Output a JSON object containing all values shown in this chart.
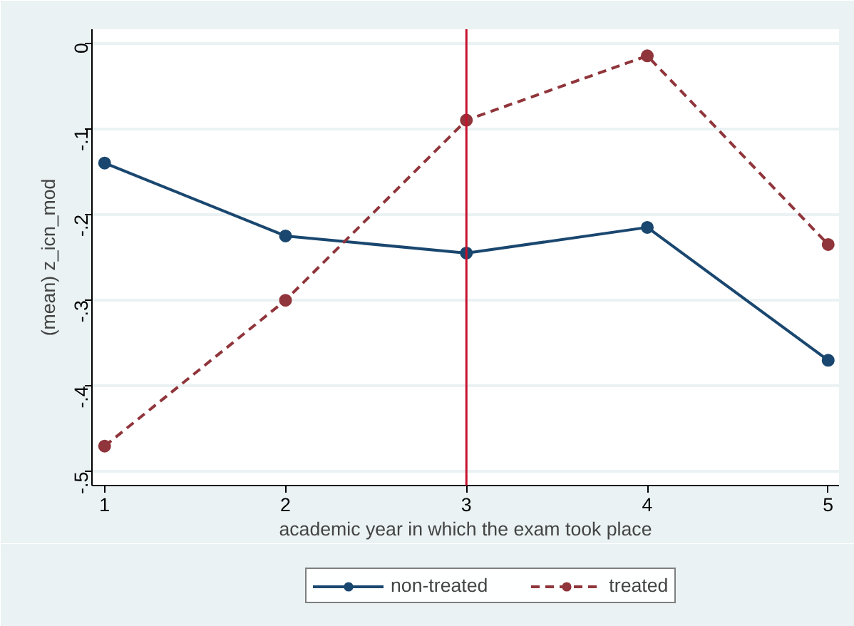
{
  "chart_data": {
    "type": "line",
    "xlabel": "academic year in which the exam took place",
    "ylabel": "(mean) z_icn_mod",
    "x": [
      1,
      2,
      3,
      4,
      5
    ],
    "series": [
      {
        "name": "non-treated",
        "color": "#1a476f",
        "values": [
          -0.14,
          -0.225,
          -0.245,
          -0.215,
          -0.37
        ],
        "line_style": "solid"
      },
      {
        "name": "treated",
        "color": "#90353b",
        "values": [
          -0.47,
          -0.3,
          -0.09,
          -0.015,
          -0.235
        ],
        "line_style": "dashed"
      }
    ],
    "xlim": [
      0.93,
      5.06
    ],
    "ylim": [
      -0.516,
      0.016
    ],
    "xticks": [
      1,
      2,
      3,
      4,
      5
    ],
    "yticks": [
      {
        "value": 0,
        "label": "0"
      },
      {
        "value": -0.1,
        "label": "-.1"
      },
      {
        "value": -0.2,
        "label": "-.2"
      },
      {
        "value": -0.3,
        "label": "-.3"
      },
      {
        "value": -0.4,
        "label": "-.4"
      },
      {
        "value": -0.5,
        "label": "-.5"
      }
    ],
    "ref_lines": [
      {
        "axis": "x",
        "value": 3,
        "color": "#c8102e"
      }
    ],
    "grid": "y",
    "legend": "bottom",
    "marker": "circle"
  }
}
